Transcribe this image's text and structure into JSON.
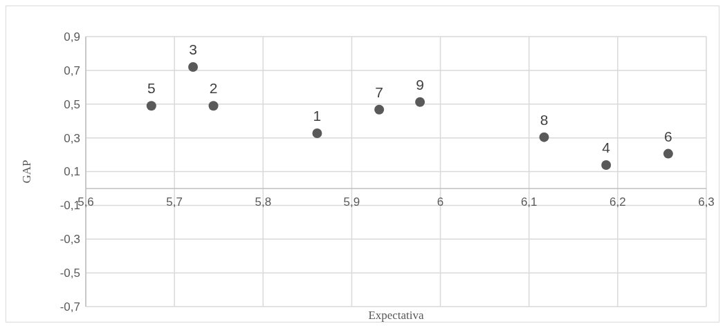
{
  "chart_data": {
    "type": "scatter",
    "xlabel": "Expectativa",
    "ylabel": "GAP",
    "x": [
      5.861,
      5.744,
      5.721,
      6.187,
      5.674,
      6.257,
      5.931,
      6.117,
      5.977
    ],
    "values": [
      0.327,
      0.49,
      0.72,
      0.139,
      0.49,
      0.206,
      0.467,
      0.304,
      0.512
    ],
    "color": "#595959",
    "marker": "circle",
    "xlim": [
      5.6,
      6.3
    ],
    "xticks": [
      {
        "value": 5.6,
        "label": "5,6"
      },
      {
        "value": 5.7,
        "label": "5,7"
      },
      {
        "value": 5.8,
        "label": "5,8"
      },
      {
        "value": 5.9,
        "label": "5,9"
      },
      {
        "value": 6,
        "label": "6"
      },
      {
        "value": 6.1,
        "label": "6,1"
      },
      {
        "value": 6.2,
        "label": "6,2"
      },
      {
        "value": 6.3,
        "label": "6,3"
      }
    ],
    "ylim": [
      -0.7,
      0.9
    ],
    "yticks": [
      {
        "value": -0.7,
        "label": "-0,7"
      },
      {
        "value": -0.5,
        "label": "-0,5"
      },
      {
        "value": -0.3,
        "label": "-0,3"
      },
      {
        "value": -0.1,
        "label": "-0,1"
      },
      {
        "value": 0.1,
        "label": "0,1"
      },
      {
        "value": 0.3,
        "label": "0,3"
      },
      {
        "value": 0.5,
        "label": "0,5"
      },
      {
        "value": 0.7,
        "label": "0,7"
      },
      {
        "value": 0.9,
        "label": "0,9"
      }
    ],
    "grid": true,
    "annotations": [
      {
        "text": "1",
        "x": 5.861,
        "y": 0.327
      },
      {
        "text": "2",
        "x": 5.744,
        "y": 0.49
      },
      {
        "text": "3",
        "x": 5.721,
        "y": 0.72
      },
      {
        "text": "4",
        "x": 6.187,
        "y": 0.139
      },
      {
        "text": "5",
        "x": 5.674,
        "y": 0.49
      },
      {
        "text": "6",
        "x": 6.257,
        "y": 0.206
      },
      {
        "text": "7",
        "x": 5.931,
        "y": 0.467
      },
      {
        "text": "8",
        "x": 6.117,
        "y": 0.304
      },
      {
        "text": "9",
        "x": 5.977,
        "y": 0.512
      }
    ]
  }
}
